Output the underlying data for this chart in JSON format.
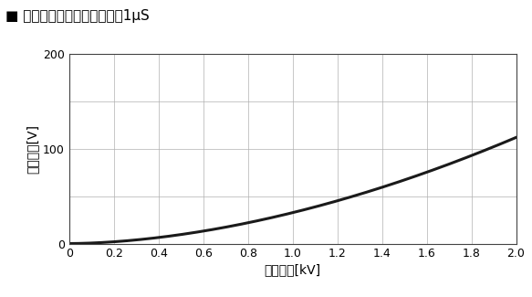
{
  "title": "■ パルス減衰特性　パルス幽1μS",
  "xlabel": "入力電圧[kV]",
  "ylabel": "出力電圧[V]",
  "xlim": [
    0,
    2.0
  ],
  "ylim": [
    0,
    200
  ],
  "xticks": [
    0,
    0.2,
    0.4,
    0.6,
    0.8,
    1.0,
    1.2,
    1.4,
    1.6,
    1.8,
    2.0
  ],
  "yticks": [
    0,
    50,
    100,
    150,
    200
  ],
  "ytick_labels": [
    "0",
    "",
    "100",
    "",
    "200"
  ],
  "curve_color": "#1a1a1a",
  "curve_linewidth": 2.2,
  "grid_color": "#b0b0b0",
  "grid_linewidth": 0.5,
  "background_color": "#ffffff",
  "title_fontsize": 11,
  "axis_label_fontsize": 10,
  "tick_fontsize": 9,
  "power_exponent": 1.78,
  "scale_factor": 32.5
}
